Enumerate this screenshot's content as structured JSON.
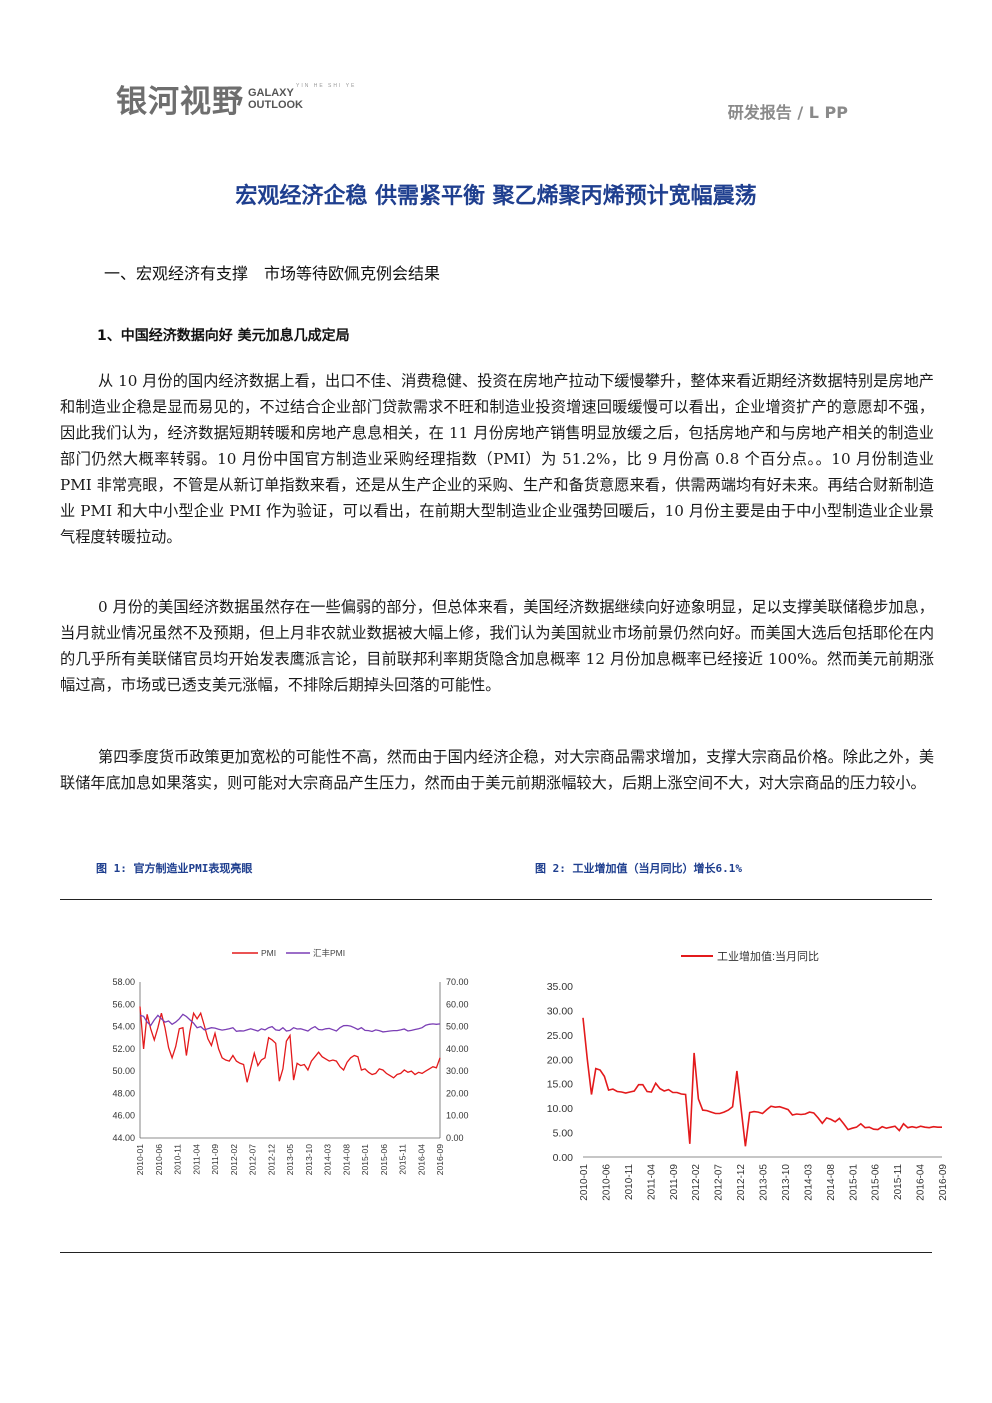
{
  "header": {
    "logo_cn": "银河视野",
    "logo_en_line1": "GALAXY",
    "logo_en_line2": "OUTLOOK",
    "logo_small_text": "YIN HE SHI YE",
    "report_tag": "研发报告 / L PP"
  },
  "title": "宏观经济企稳 供需紧平衡 聚乙烯聚丙烯预计宽幅震荡",
  "section_heading": "一、宏观经济有支撑　市场等待欧佩克例会结果",
  "subheading": "1、中国经济数据向好 美元加息几成定局",
  "paragraphs": [
    "从 10 月份的国内经济数据上看，出口不佳、消费稳健、投资在房地产拉动下缓慢攀升，整体来看近期经济数据特别是房地产和制造业企稳是显而易见的，不过结合企业部门贷款需求不旺和制造业投资增速回暖缓慢可以看出，企业增资扩产的意愿却不强，因此我们认为，经济数据短期转暖和房地产息息相关，在 11 月份房地产销售明显放缓之后，包括房地产和与房地产相关的制造业部门仍然大概率转弱。10 月份中国官方制造业采购经理指数（PMI）为 51.2%，比 9 月份高 0.8 个百分点。。10 月份制造业 PMI 非常亮眼，不管是从新订单指数来看，还是从生产企业的采购、生产和备货意愿来看，供需两端均有好未来。再结合财新制造业 PMI 和大中小型企业 PMI 作为验证，可以看出，在前期大型制造业企业强势回暖后，10 月份主要是由于中小型制造业企业景气程度转暖拉动。",
    "0 月份的美国经济数据虽然存在一些偏弱的部分，但总体来看，美国经济数据继续向好迹象明显，足以支撑美联储稳步加息，当月就业情况虽然不及预期，但上月非农就业数据被大幅上修，我们认为美国就业市场前景仍然向好。而美国大选后包括耶伦在内的几乎所有美联储官员均开始发表鹰派言论，目前联邦利率期货隐含加息概率 12 月份加息概率已经接近 100%。然而美元前期涨幅过高，市场或已透支美元涨幅，不排除后期掉头回落的可能性。",
    "第四季度货币政策更加宽松的可能性不高，然而由于国内经济企稳，对大宗商品需求增加，支撑大宗商品价格。除此之外，美联储年底加息如果落实，则可能对大宗商品产生压力，然而由于美元前期涨幅较大，后期上涨空间不大，对大宗商品的压力较小。"
  ],
  "figures": {
    "fig1_caption": "图 1: 官方制造业PMI表现亮眼",
    "fig2_caption": "图 2: 工业增加值（当月同比）增长6.1%"
  },
  "chart_data": [
    {
      "type": "line",
      "title": "",
      "x_tick_labels": [
        "2010-01",
        "2010-06",
        "2010-11",
        "2011-04",
        "2011-09",
        "2012-02",
        "2012-07",
        "2012-12",
        "2013-05",
        "2013-10",
        "2014-03",
        "2014-08",
        "2015-01",
        "2015-06",
        "2015-11",
        "2016-04",
        "2016-09"
      ],
      "y_left_ticks": [
        "58.00",
        "56.00",
        "54.00",
        "52.00",
        "50.00",
        "48.00",
        "46.00",
        "44.00"
      ],
      "y_right_ticks": [
        "70.00",
        "60.00",
        "50.00",
        "40.00",
        "30.00",
        "20.00",
        "10.00",
        "0.00"
      ],
      "ylim_left": [
        44,
        58
      ],
      "ylim_right": [
        0,
        70
      ],
      "legend_position": "top",
      "colors": {
        "pmi": "#e31a1c",
        "hsbc": "#7b3fb5"
      },
      "series": [
        {
          "name": "PMI",
          "axis": "left",
          "values": [
            55.8,
            52.0,
            55.1,
            53.8,
            52.8,
            53.9,
            55.2,
            53.9,
            52.1,
            51.2,
            52.2,
            53.8,
            53.9,
            51.4,
            53.6,
            55.2,
            54.7,
            55.2,
            54.1,
            52.9,
            52.3,
            53.4,
            52.0,
            51.2,
            51.0,
            50.9,
            51.4,
            50.9,
            50.7,
            50.6,
            49.0,
            50.3,
            51.6,
            50.5,
            51.0,
            51.2,
            53.0,
            52.8,
            52.5,
            49.1,
            50.2,
            52.7,
            53.2,
            49.2,
            50.7,
            50.5,
            50.6,
            50.1,
            50.9,
            51.3,
            51.7,
            51.3,
            51.1,
            50.9,
            51.0,
            50.9,
            50.4,
            50.1,
            50.8,
            51.2,
            51.4,
            51.3,
            50.1,
            50.2,
            49.9,
            49.7,
            49.8,
            50.2,
            50.1,
            49.8,
            49.6,
            49.4,
            49.7,
            49.8,
            50.1,
            49.9,
            50.0,
            49.7,
            49.9,
            49.8,
            50.0,
            50.2,
            50.4,
            50.3,
            51.2
          ]
        },
        {
          "name": "汇丰PMI",
          "axis": "right",
          "values": [
            55.0,
            54.6,
            52.0,
            50.5,
            53.0,
            55.0,
            53.5,
            52.0,
            52.5,
            51.0,
            52.0,
            53.5,
            55.5,
            54.5,
            53.0,
            51.5,
            49.5,
            50.0,
            48.5,
            49.0,
            49.5,
            49.3,
            48.8,
            48.4,
            48.7,
            49.0,
            49.5,
            47.9,
            48.1,
            48.0,
            48.5,
            49.0,
            48.5,
            48.0,
            49.0,
            48.5,
            49.5,
            50.0,
            48.5,
            48.3,
            49.5,
            48.0,
            48.3,
            49.5,
            48.9,
            49.0,
            48.5,
            48.0,
            49.2,
            50.0,
            48.7,
            48.5,
            49.0,
            49.2,
            48.6,
            48.0,
            49.5,
            50.4,
            50.5,
            50.2,
            49.5,
            48.7,
            49.5,
            48.3,
            48.2,
            47.8,
            48.5,
            48.2,
            47.6,
            47.8,
            48.0,
            48.2,
            48.2,
            48.5,
            48.9,
            48.0,
            48.3,
            48.7,
            49.0,
            49.5,
            50.6,
            51.0,
            51.2,
            51.0,
            51.2
          ]
        }
      ]
    },
    {
      "type": "line",
      "title": "",
      "x_tick_labels": [
        "2010-01",
        "2010-06",
        "2010-11",
        "2011-04",
        "2011-09",
        "2012-02",
        "2012-07",
        "2012-12",
        "2013-05",
        "2013-10",
        "2014-03",
        "2014-08",
        "2015-01",
        "2015-06",
        "2015-11",
        "2016-04",
        "2016-09"
      ],
      "y_ticks": [
        "35.00",
        "30.00",
        "25.00",
        "20.00",
        "15.00",
        "10.00",
        "5.00",
        "0.00"
      ],
      "ylim": [
        0,
        35
      ],
      "legend_position": "top",
      "colors": {
        "series": "#e31a1c"
      },
      "series": [
        {
          "name": "工业增加值:当月同比",
          "values": [
            28.5,
            20.0,
            12.8,
            18.1,
            17.8,
            16.5,
            13.7,
            13.9,
            13.4,
            13.3,
            13.1,
            13.3,
            13.5,
            14.8,
            14.8,
            13.4,
            13.3,
            15.1,
            14.0,
            13.5,
            13.8,
            13.2,
            13.2,
            12.9,
            12.8,
            2.7,
            21.3,
            11.9,
            9.6,
            9.5,
            9.2,
            8.9,
            8.9,
            9.2,
            9.6,
            10.3,
            17.6,
            9.9,
            2.2,
            9.1,
            9.3,
            9.2,
            8.9,
            9.7,
            10.4,
            10.2,
            10.3,
            10.0,
            9.7,
            8.6,
            8.8,
            8.7,
            8.8,
            9.2,
            9.0,
            8.0,
            6.9,
            8.0,
            7.7,
            7.2,
            7.9,
            6.8,
            5.6,
            5.9,
            6.1,
            6.8,
            6.0,
            6.1,
            5.7,
            5.6,
            6.2,
            5.9,
            6.1,
            6.3,
            5.4,
            6.8,
            6.0,
            6.2,
            6.0,
            6.3,
            6.1,
            6.0,
            6.2,
            6.1,
            6.1
          ]
        }
      ]
    }
  ]
}
